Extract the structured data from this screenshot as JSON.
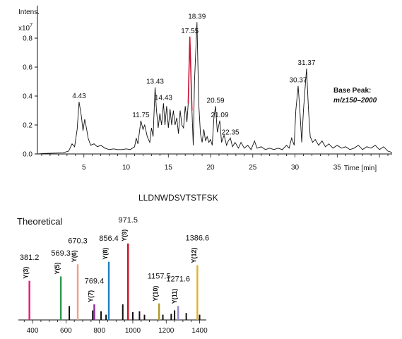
{
  "chart_data": [
    {
      "type": "line",
      "ylabel": "Intens.",
      "y_multiplier": "x10",
      "y_multiplier_exp": "7",
      "xlabel": "Time [min]",
      "xlim": [
        -0.5,
        41.5
      ],
      "ylim": [
        0,
        1.0
      ],
      "x_ticks": [
        5,
        10,
        15,
        20,
        25,
        30,
        35
      ],
      "y_ticks": [
        "0.0",
        "0.2",
        "0.4",
        "0.6",
        "0.8"
      ],
      "annotation": {
        "line1": "Base Peak:",
        "line2": "m/z150–2000"
      },
      "peak_labels": [
        {
          "text": "4.43",
          "x": 4.43,
          "y": 0.36
        },
        {
          "text": "11.75",
          "x": 11.75,
          "y": 0.23
        },
        {
          "text": "13.43",
          "x": 13.43,
          "y": 0.46
        },
        {
          "text": "14.43",
          "x": 14.43,
          "y": 0.35
        },
        {
          "text": "17.55",
          "x": 17.55,
          "y": 0.81
        },
        {
          "text": "18.39",
          "x": 18.39,
          "y": 0.91
        },
        {
          "text": "20.59",
          "x": 20.59,
          "y": 0.33
        },
        {
          "text": "21.09",
          "x": 21.09,
          "y": 0.23
        },
        {
          "text": "22.35",
          "x": 22.35,
          "y": 0.11
        },
        {
          "text": "30.37",
          "x": 30.37,
          "y": 0.47
        },
        {
          "text": "31.37",
          "x": 31.37,
          "y": 0.59
        }
      ],
      "highlight": {
        "x_start": 17.35,
        "x_end": 17.8,
        "color": "#cc1133"
      },
      "points": [
        [
          -0.5,
          0.0
        ],
        [
          0.5,
          0.004
        ],
        [
          1.5,
          0.006
        ],
        [
          2.5,
          0.008
        ],
        [
          3.2,
          0.02
        ],
        [
          3.6,
          0.07
        ],
        [
          3.9,
          0.05
        ],
        [
          4.2,
          0.17
        ],
        [
          4.43,
          0.36
        ],
        [
          4.7,
          0.26
        ],
        [
          4.9,
          0.16
        ],
        [
          5.1,
          0.24
        ],
        [
          5.3,
          0.18
        ],
        [
          5.5,
          0.11
        ],
        [
          5.8,
          0.06
        ],
        [
          6.2,
          0.07
        ],
        [
          6.6,
          0.05
        ],
        [
          7.0,
          0.06
        ],
        [
          7.5,
          0.04
        ],
        [
          8.0,
          0.03
        ],
        [
          8.5,
          0.035
        ],
        [
          9.0,
          0.03
        ],
        [
          9.5,
          0.03
        ],
        [
          10.0,
          0.035
        ],
        [
          10.5,
          0.03
        ],
        [
          11.0,
          0.05
        ],
        [
          11.2,
          0.11
        ],
        [
          11.4,
          0.07
        ],
        [
          11.75,
          0.23
        ],
        [
          12.0,
          0.17
        ],
        [
          12.2,
          0.2
        ],
        [
          12.5,
          0.12
        ],
        [
          12.8,
          0.08
        ],
        [
          13.0,
          0.18
        ],
        [
          13.2,
          0.12
        ],
        [
          13.43,
          0.46
        ],
        [
          13.6,
          0.3
        ],
        [
          13.8,
          0.18
        ],
        [
          14.0,
          0.28
        ],
        [
          14.2,
          0.2
        ],
        [
          14.43,
          0.35
        ],
        [
          14.6,
          0.2
        ],
        [
          14.8,
          0.33
        ],
        [
          15.0,
          0.18
        ],
        [
          15.2,
          0.31
        ],
        [
          15.4,
          0.2
        ],
        [
          15.6,
          0.3
        ],
        [
          15.8,
          0.2
        ],
        [
          16.0,
          0.25
        ],
        [
          16.2,
          0.14
        ],
        [
          16.4,
          0.3
        ],
        [
          16.6,
          0.2
        ],
        [
          16.8,
          0.18
        ],
        [
          17.0,
          0.33
        ],
        [
          17.2,
          0.22
        ],
        [
          17.35,
          0.35
        ],
        [
          17.55,
          0.81
        ],
        [
          17.8,
          0.3
        ],
        [
          17.95,
          0.06
        ],
        [
          18.1,
          0.5
        ],
        [
          18.39,
          0.91
        ],
        [
          18.6,
          0.35
        ],
        [
          18.8,
          0.14
        ],
        [
          19.0,
          0.08
        ],
        [
          19.2,
          0.17
        ],
        [
          19.4,
          0.09
        ],
        [
          19.6,
          0.12
        ],
        [
          19.8,
          0.08
        ],
        [
          20.0,
          0.1
        ],
        [
          20.2,
          0.06
        ],
        [
          20.4,
          0.25
        ],
        [
          20.59,
          0.33
        ],
        [
          20.8,
          0.15
        ],
        [
          21.09,
          0.23
        ],
        [
          21.3,
          0.08
        ],
        [
          21.6,
          0.13
        ],
        [
          21.9,
          0.06
        ],
        [
          22.1,
          0.09
        ],
        [
          22.35,
          0.11
        ],
        [
          22.6,
          0.05
        ],
        [
          22.9,
          0.08
        ],
        [
          23.3,
          0.04
        ],
        [
          23.6,
          0.08
        ],
        [
          24.0,
          0.04
        ],
        [
          24.4,
          0.06
        ],
        [
          24.8,
          0.03
        ],
        [
          25.2,
          0.09
        ],
        [
          25.5,
          0.04
        ],
        [
          26.0,
          0.05
        ],
        [
          26.5,
          0.03
        ],
        [
          27.0,
          0.04
        ],
        [
          27.5,
          0.03
        ],
        [
          28.0,
          0.04
        ],
        [
          28.5,
          0.03
        ],
        [
          29.0,
          0.06
        ],
        [
          29.3,
          0.04
        ],
        [
          29.6,
          0.11
        ],
        [
          29.9,
          0.06
        ],
        [
          30.1,
          0.3
        ],
        [
          30.37,
          0.47
        ],
        [
          30.6,
          0.28
        ],
        [
          30.8,
          0.08
        ],
        [
          31.0,
          0.3
        ],
        [
          31.37,
          0.59
        ],
        [
          31.6,
          0.3
        ],
        [
          31.8,
          0.12
        ],
        [
          32.1,
          0.08
        ],
        [
          32.4,
          0.1
        ],
        [
          32.8,
          0.06
        ],
        [
          33.2,
          0.09
        ],
        [
          33.6,
          0.05
        ],
        [
          34.0,
          0.07
        ],
        [
          34.5,
          0.04
        ],
        [
          35.0,
          0.06
        ],
        [
          35.5,
          0.04
        ],
        [
          36.0,
          0.05
        ],
        [
          36.5,
          0.03
        ],
        [
          37.0,
          0.04
        ],
        [
          37.5,
          0.06
        ],
        [
          38.0,
          0.03
        ],
        [
          38.5,
          0.05
        ],
        [
          39.0,
          0.04
        ],
        [
          39.5,
          0.06
        ],
        [
          40.0,
          0.03
        ],
        [
          40.5,
          0.05
        ],
        [
          41.0,
          0.02
        ],
        [
          41.5,
          0.01
        ]
      ]
    },
    {
      "type": "bar",
      "title": "LLDNWDSVTSTFSK",
      "label": "Theoretical",
      "xlim": [
        315,
        1440
      ],
      "ylim": [
        0,
        1.0
      ],
      "x_ticks": [
        400,
        600,
        800,
        1000,
        1200,
        1400
      ],
      "ions": [
        {
          "ion": "Y(3)",
          "mz": 381.2,
          "label": "381.2",
          "height": 0.45,
          "color": "#e5197a"
        },
        {
          "ion": "Y(5)",
          "mz": 569.3,
          "label": "569.3",
          "height": 0.5,
          "color": "#2a9a4a"
        },
        {
          "ion": "Y(6)",
          "mz": 670.3,
          "label": "670.3",
          "height": 0.64,
          "color": "#f0a080"
        },
        {
          "ion": "Y(7)",
          "mz": 769.4,
          "label": "769.4",
          "height": 0.18,
          "color": "#8a2a9a"
        },
        {
          "ion": "Y(8)",
          "mz": 856.4,
          "label": "856.4",
          "height": 0.67,
          "color": "#1f7fbf"
        },
        {
          "ion": "Y(9)",
          "mz": 971.5,
          "label": "971.5",
          "height": 0.88,
          "color": "#cc1122"
        },
        {
          "ion": "Y(10)",
          "mz": 1157.5,
          "label": "1157.5",
          "height": 0.19,
          "color": "#b09a2a"
        },
        {
          "ion": "Y(11)",
          "mz": 1271.6,
          "label": "1271.6",
          "height": 0.16,
          "color": "#9a8ad0"
        },
        {
          "ion": "Y(12)",
          "mz": 1386.6,
          "label": "1386.6",
          "height": 0.63,
          "color": "#e0b22a"
        }
      ],
      "minor_peaks": [
        [
          620,
          0.16
        ],
        [
          760,
          0.11
        ],
        [
          810,
          0.1
        ],
        [
          840,
          0.06
        ],
        [
          940,
          0.18
        ],
        [
          1000,
          0.09
        ],
        [
          1040,
          0.1
        ],
        [
          1070,
          0.06
        ],
        [
          1180,
          0.06
        ],
        [
          1230,
          0.07
        ],
        [
          1250,
          0.11
        ],
        [
          1320,
          0.08
        ],
        [
          1400,
          0.06
        ]
      ]
    }
  ]
}
